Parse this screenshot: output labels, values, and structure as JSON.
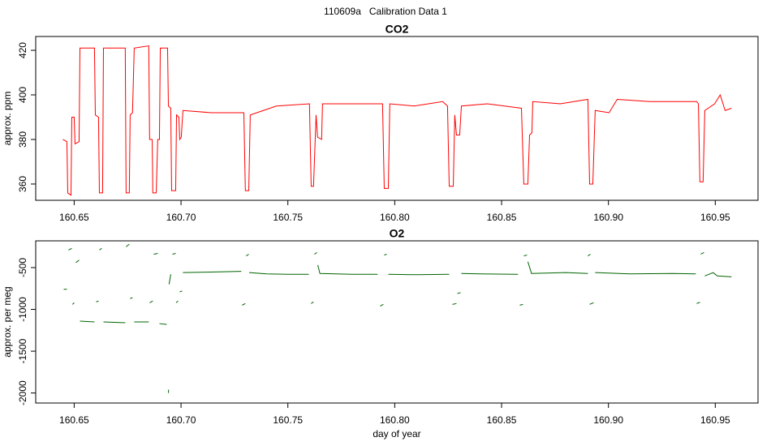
{
  "title": "110609a   Calibration Data 1",
  "chart_data": [
    {
      "type": "line",
      "title": "CO2",
      "ylabel": "approx. ppm",
      "xlim": [
        160.632,
        160.97
      ],
      "ylim": [
        352.7,
        426.2
      ],
      "xticks": [
        160.65,
        {
          "value": 160.7,
          "label": "160.70"
        },
        160.75,
        {
          "value": 160.8,
          "label": "160.80"
        },
        160.85,
        {
          "value": 160.9,
          "label": "160.90"
        },
        160.95
      ],
      "yticks": [
        360,
        380,
        400,
        420
      ],
      "x": [
        160.6447,
        160.6466,
        160.647,
        160.6485,
        160.6489,
        160.65,
        160.6504,
        160.6523,
        160.6527,
        160.6595,
        160.6599,
        160.6614,
        160.6618,
        160.6633,
        160.6637,
        160.6739,
        160.6743,
        160.6758,
        160.6762,
        160.6773,
        160.6781,
        160.6849,
        160.6853,
        160.6865,
        160.6868,
        160.6884,
        160.6891,
        160.6899,
        160.6903,
        160.6937,
        160.6941,
        160.6952,
        160.6956,
        160.6975,
        160.6979,
        160.699,
        160.6994,
        160.7001,
        160.7009,
        160.7142,
        160.7294,
        160.7301,
        160.7317,
        160.7324,
        160.7446,
        160.7601,
        160.7609,
        160.762,
        160.7632,
        160.7639,
        160.7658,
        160.7662,
        160.7788,
        160.7943,
        160.7951,
        160.797,
        160.7977,
        160.8091,
        160.8224,
        160.8247,
        160.8255,
        160.8274,
        160.8281,
        160.8289,
        160.8304,
        160.8312,
        160.8433,
        160.8593,
        160.8604,
        160.8623,
        160.8631,
        160.8642,
        160.8646,
        160.8775,
        160.8904,
        160.8912,
        160.8927,
        160.8938,
        160.9003,
        160.9041,
        160.9193,
        160.9413,
        160.9421,
        160.9428,
        160.9443,
        160.9451,
        160.9497,
        160.9523,
        160.9546,
        160.9576
      ],
      "series": [
        {
          "color": "#ff0000",
          "values": [
            380,
            379,
            356,
            355,
            390,
            390,
            378,
            379,
            421,
            421,
            391,
            390,
            356,
            356,
            421,
            421,
            356,
            356,
            391,
            392,
            421,
            422,
            380,
            380,
            356,
            356,
            380,
            380,
            421,
            421,
            395,
            394,
            357,
            357,
            391,
            390,
            380,
            381,
            393,
            392,
            392,
            357,
            357,
            391,
            395,
            396,
            359,
            359,
            391,
            381,
            380,
            396,
            396,
            396,
            358,
            358,
            396,
            395,
            397,
            395,
            359,
            359,
            391,
            382,
            382,
            395,
            396,
            394,
            360,
            360,
            382,
            383,
            397,
            396,
            398,
            360,
            360,
            393,
            392,
            398,
            397,
            397,
            396,
            361,
            361,
            393,
            396,
            400,
            393,
            394
          ]
        }
      ]
    },
    {
      "type": "line",
      "title": "O2",
      "ylabel": "approx. per meg",
      "xlabel": "day of year",
      "xlim": [
        160.632,
        160.97
      ],
      "ylim": [
        -2120,
        -180
      ],
      "xticks": [
        160.65,
        {
          "value": 160.7,
          "label": "160.70"
        },
        160.75,
        {
          "value": 160.8,
          "label": "160.80"
        },
        160.85,
        {
          "value": 160.9,
          "label": "160.90"
        },
        160.95
      ],
      "yticks": [
        -500,
        -1000,
        -1500,
        -2000
      ],
      "x": [
        160.6451,
        160.6466,
        null,
        160.6473,
        160.6489,
        null,
        160.6492,
        160.65,
        null,
        160.6508,
        160.6523,
        null,
        160.6527,
        160.6595,
        null,
        160.6603,
        160.6614,
        null,
        160.6618,
        160.6629,
        null,
        160.6637,
        160.6739,
        null,
        160.6743,
        160.6758,
        null,
        160.6762,
        160.6773,
        null,
        160.6781,
        160.6849,
        null,
        160.6853,
        160.6868,
        null,
        160.6872,
        160.6891,
        null,
        160.6899,
        160.6933,
        null,
        160.6941,
        160.6942,
        null,
        160.6944,
        160.6952,
        null,
        160.696,
        160.6975,
        null,
        160.6977,
        160.6986,
        null,
        160.6994,
        160.7005,
        null,
        160.7009,
        160.72,
        160.7282,
        null,
        160.7286,
        160.7301,
        null,
        160.7305,
        160.7317,
        null,
        160.7319,
        160.74,
        160.75,
        160.7598,
        null,
        160.7609,
        160.762,
        null,
        160.7624,
        160.7636,
        null,
        160.764,
        160.765,
        160.78,
        160.792,
        null,
        160.7932,
        160.7947,
        null,
        160.7951,
        160.7962,
        null,
        160.797,
        160.81,
        160.8255,
        null,
        160.827,
        160.8289,
        null,
        160.8293,
        160.8308,
        null,
        160.8312,
        160.84,
        160.8577,
        null,
        160.8585,
        160.86,
        null,
        160.8604,
        160.8619,
        null,
        160.8623,
        160.864,
        160.88,
        160.8904,
        null,
        160.8904,
        160.8916,
        null,
        160.8912,
        160.8931,
        null,
        160.8938,
        160.91,
        160.93,
        160.9409,
        null,
        160.9413,
        160.9428,
        null,
        160.9432,
        160.9447,
        null,
        160.9451,
        160.949,
        160.951,
        160.9576
      ],
      "series": [
        {
          "color": "#006400",
          "values": [
            -760,
            -760,
            null,
            -290,
            -270,
            null,
            -940,
            -920,
            null,
            -440,
            -410,
            null,
            -1140,
            -1150,
            null,
            -910,
            -900,
            null,
            -290,
            -270,
            null,
            -1150,
            -1160,
            null,
            -250,
            -220,
            null,
            -870,
            -860,
            null,
            -1150,
            -1150,
            null,
            -920,
            -900,
            null,
            -340,
            -330,
            null,
            -1170,
            -1180,
            null,
            -2000,
            -1960,
            null,
            -700,
            -580,
            null,
            -340,
            -330,
            null,
            -920,
            -900,
            null,
            -790,
            -780,
            null,
            -560,
            -550,
            -545,
            null,
            -950,
            -930,
            null,
            -360,
            -340,
            null,
            -560,
            -575,
            -580,
            -580,
            null,
            -930,
            -910,
            null,
            -340,
            -320,
            null,
            -470,
            -570,
            -580,
            -580,
            null,
            -960,
            -940,
            null,
            -350,
            -340,
            null,
            -580,
            -585,
            -580,
            null,
            -940,
            -930,
            null,
            -810,
            -800,
            null,
            -570,
            -575,
            -580,
            null,
            -950,
            -940,
            null,
            -360,
            -350,
            null,
            -430,
            -570,
            -560,
            -570,
            null,
            -360,
            -340,
            null,
            -940,
            -920,
            null,
            -560,
            -575,
            -570,
            -575,
            null,
            -930,
            -915,
            null,
            -340,
            -320,
            null,
            -600,
            -560,
            -600,
            -610
          ]
        }
      ]
    }
  ]
}
